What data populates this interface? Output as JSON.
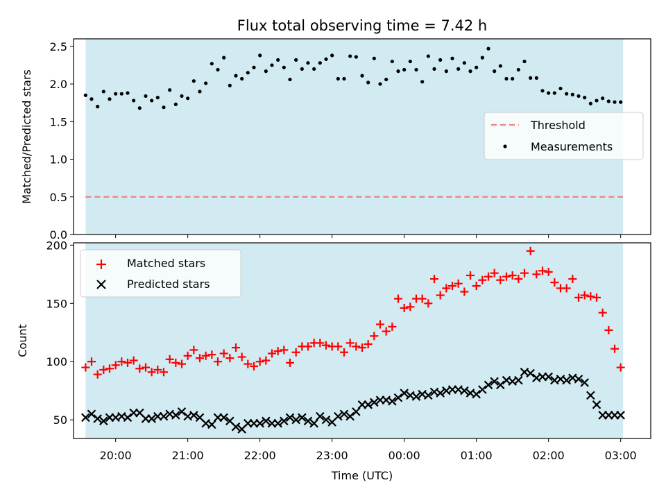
{
  "chart_data": [
    {
      "type": "scatter",
      "title": "Flux total observing time = 7.42 h",
      "ylabel": "Matched/Predicted stars",
      "xlim": [
        "19:25",
        "03:25"
      ],
      "ylim": [
        0,
        2.6
      ],
      "yticks": [
        0.0,
        0.5,
        1.0,
        1.5,
        2.0,
        2.5
      ],
      "ytick_labels": [
        "0.0",
        "0.5",
        "1.0",
        "1.5",
        "2.0",
        "2.5"
      ],
      "shaded_span": [
        "19:35",
        "03:02"
      ],
      "shade_color": "#add8e6",
      "threshold": {
        "name": "Threshold",
        "value": 0.5,
        "color": "#f08080",
        "style": "dashed"
      },
      "legend": {
        "position": "center-right",
        "entries": [
          "Threshold",
          "Measurements"
        ]
      },
      "series": [
        {
          "name": "Measurements",
          "color": "#000000",
          "x": [
            "19:35",
            "19:40",
            "19:45",
            "19:50",
            "19:55",
            "20:00",
            "20:05",
            "20:10",
            "20:15",
            "20:20",
            "20:25",
            "20:30",
            "20:35",
            "20:40",
            "20:45",
            "20:50",
            "20:55",
            "21:00",
            "21:05",
            "21:10",
            "21:15",
            "21:20",
            "21:25",
            "21:30",
            "21:35",
            "21:40",
            "21:45",
            "21:50",
            "21:55",
            "22:00",
            "22:05",
            "22:10",
            "22:15",
            "22:20",
            "22:25",
            "22:30",
            "22:35",
            "22:40",
            "22:45",
            "22:50",
            "22:55",
            "23:00",
            "23:05",
            "23:10",
            "23:15",
            "23:20",
            "23:25",
            "23:30",
            "23:35",
            "23:40",
            "23:45",
            "23:50",
            "23:55",
            "00:00",
            "00:05",
            "00:10",
            "00:15",
            "00:20",
            "00:25",
            "00:30",
            "00:35",
            "00:40",
            "00:45",
            "00:50",
            "00:55",
            "01:00",
            "01:05",
            "01:10",
            "01:15",
            "01:20",
            "01:25",
            "01:30",
            "01:35",
            "01:40",
            "01:45",
            "01:50",
            "01:55",
            "02:00",
            "02:05",
            "02:10",
            "02:15",
            "02:20",
            "02:25",
            "02:30",
            "02:35",
            "02:40",
            "02:45",
            "02:50",
            "02:55",
            "03:00"
          ],
          "y": [
            1.85,
            1.8,
            1.7,
            1.9,
            1.8,
            1.87,
            1.87,
            1.88,
            1.78,
            1.68,
            1.84,
            1.78,
            1.82,
            1.69,
            1.92,
            1.73,
            1.84,
            1.81,
            2.04,
            1.9,
            2.01,
            2.27,
            2.19,
            2.35,
            1.98,
            2.11,
            2.07,
            2.15,
            2.22,
            2.38,
            2.17,
            2.25,
            2.32,
            2.22,
            2.06,
            2.32,
            2.2,
            2.28,
            2.2,
            2.28,
            2.33,
            2.38,
            2.07,
            2.07,
            2.37,
            2.36,
            2.11,
            2.02,
            2.34,
            2.0,
            2.06,
            2.3,
            2.17,
            2.19,
            2.3,
            2.19,
            2.03,
            2.37,
            2.2,
            2.32,
            2.17,
            2.34,
            2.2,
            2.28,
            2.17,
            2.22,
            2.35,
            2.47,
            2.17,
            2.24,
            2.07,
            2.07,
            2.19,
            2.3,
            2.08,
            2.08,
            1.91,
            1.88,
            1.88,
            1.94,
            1.87,
            1.86,
            1.84,
            1.82,
            1.74,
            1.78,
            1.81,
            1.77,
            1.76,
            1.76
          ]
        }
      ]
    },
    {
      "type": "scatter",
      "xlabel": "Time (UTC)",
      "ylabel": "Count",
      "xlim": [
        "19:25",
        "03:25"
      ],
      "ylim": [
        34,
        202
      ],
      "yticks": [
        50,
        100,
        150,
        200
      ],
      "ytick_labels": [
        "50",
        "100",
        "150",
        "200"
      ],
      "xtick_labels": [
        "20:00",
        "21:00",
        "22:00",
        "23:00",
        "00:00",
        "01:00",
        "02:00",
        "03:00"
      ],
      "shaded_span": [
        "19:35",
        "03:02"
      ],
      "shade_color": "#add8e6",
      "legend": {
        "position": "top-left",
        "entries": [
          "Matched stars",
          "Predicted stars"
        ]
      },
      "series": [
        {
          "name": "Matched stars",
          "marker": "+",
          "color": "#ff0000",
          "x": [
            "19:35",
            "19:40",
            "19:45",
            "19:50",
            "19:55",
            "20:00",
            "20:05",
            "20:10",
            "20:15",
            "20:20",
            "20:25",
            "20:30",
            "20:35",
            "20:40",
            "20:45",
            "20:50",
            "20:55",
            "21:00",
            "21:05",
            "21:10",
            "21:15",
            "21:20",
            "21:25",
            "21:30",
            "21:35",
            "21:40",
            "21:45",
            "21:50",
            "21:55",
            "22:00",
            "22:05",
            "22:10",
            "22:15",
            "22:20",
            "22:25",
            "22:30",
            "22:35",
            "22:40",
            "22:45",
            "22:50",
            "22:55",
            "23:00",
            "23:05",
            "23:10",
            "23:15",
            "23:20",
            "23:25",
            "23:30",
            "23:35",
            "23:40",
            "23:45",
            "23:50",
            "23:55",
            "00:00",
            "00:05",
            "00:10",
            "00:15",
            "00:20",
            "00:25",
            "00:30",
            "00:35",
            "00:40",
            "00:45",
            "00:50",
            "00:55",
            "01:00",
            "01:05",
            "01:10",
            "01:15",
            "01:20",
            "01:25",
            "01:30",
            "01:35",
            "01:40",
            "01:45",
            "01:50",
            "01:55",
            "02:00",
            "02:05",
            "02:10",
            "02:15",
            "02:20",
            "02:25",
            "02:30",
            "02:35",
            "02:40",
            "02:45",
            "02:50",
            "02:55",
            "03:00"
          ],
          "y": [
            95,
            100,
            89,
            93,
            94,
            97,
            100,
            99,
            101,
            94,
            95,
            91,
            93,
            91,
            102,
            99,
            98,
            105,
            110,
            103,
            105,
            106,
            100,
            107,
            103,
            112,
            104,
            98,
            96,
            100,
            101,
            107,
            109,
            110,
            99,
            108,
            113,
            113,
            116,
            116,
            114,
            113,
            113,
            108,
            116,
            113,
            112,
            115,
            122,
            132,
            126,
            130,
            154,
            146,
            147,
            154,
            154,
            150,
            171,
            157,
            163,
            165,
            167,
            160,
            174,
            165,
            170,
            173,
            176,
            170,
            173,
            174,
            171,
            176,
            195,
            175,
            178,
            177,
            168,
            163,
            163,
            171,
            155,
            157,
            156,
            155,
            142,
            127,
            111,
            95
          ]
        },
        {
          "name": "Predicted stars",
          "marker": "x",
          "color": "#000000",
          "x": [
            "19:35",
            "19:40",
            "19:45",
            "19:50",
            "19:55",
            "20:00",
            "20:05",
            "20:10",
            "20:15",
            "20:20",
            "20:25",
            "20:30",
            "20:35",
            "20:40",
            "20:45",
            "20:50",
            "20:55",
            "21:00",
            "21:05",
            "21:10",
            "21:15",
            "21:20",
            "21:25",
            "21:30",
            "21:35",
            "21:40",
            "21:45",
            "21:50",
            "21:55",
            "22:00",
            "22:05",
            "22:10",
            "22:15",
            "22:20",
            "22:25",
            "22:30",
            "22:35",
            "22:40",
            "22:45",
            "22:50",
            "22:55",
            "23:00",
            "23:05",
            "23:10",
            "23:15",
            "23:20",
            "23:25",
            "23:30",
            "23:35",
            "23:40",
            "23:45",
            "23:50",
            "23:55",
            "00:00",
            "00:05",
            "00:10",
            "00:15",
            "00:20",
            "00:25",
            "00:30",
            "00:35",
            "00:40",
            "00:45",
            "00:50",
            "00:55",
            "01:00",
            "01:05",
            "01:10",
            "01:15",
            "01:20",
            "01:25",
            "01:30",
            "01:35",
            "01:40",
            "01:45",
            "01:50",
            "01:55",
            "02:00",
            "02:05",
            "02:10",
            "02:15",
            "02:20",
            "02:25",
            "02:30",
            "02:35",
            "02:40",
            "02:45",
            "02:50",
            "02:55",
            "03:00"
          ],
          "y": [
            52,
            55,
            51,
            49,
            52,
            52,
            53,
            52,
            56,
            56,
            51,
            51,
            53,
            53,
            55,
            54,
            57,
            53,
            54,
            52,
            47,
            46,
            52,
            52,
            49,
            44,
            42,
            47,
            47,
            47,
            49,
            47,
            47,
            49,
            52,
            50,
            52,
            49,
            47,
            53,
            50,
            48,
            53,
            55,
            53,
            57,
            63,
            63,
            65,
            67,
            67,
            66,
            69,
            73,
            71,
            70,
            72,
            71,
            74,
            73,
            75,
            76,
            76,
            75,
            73,
            72,
            76,
            80,
            83,
            80,
            84,
            83,
            84,
            91,
            90,
            86,
            87,
            87,
            84,
            85,
            84,
            86,
            85,
            82,
            71,
            63,
            54,
            54,
            54,
            54
          ]
        }
      ]
    }
  ]
}
